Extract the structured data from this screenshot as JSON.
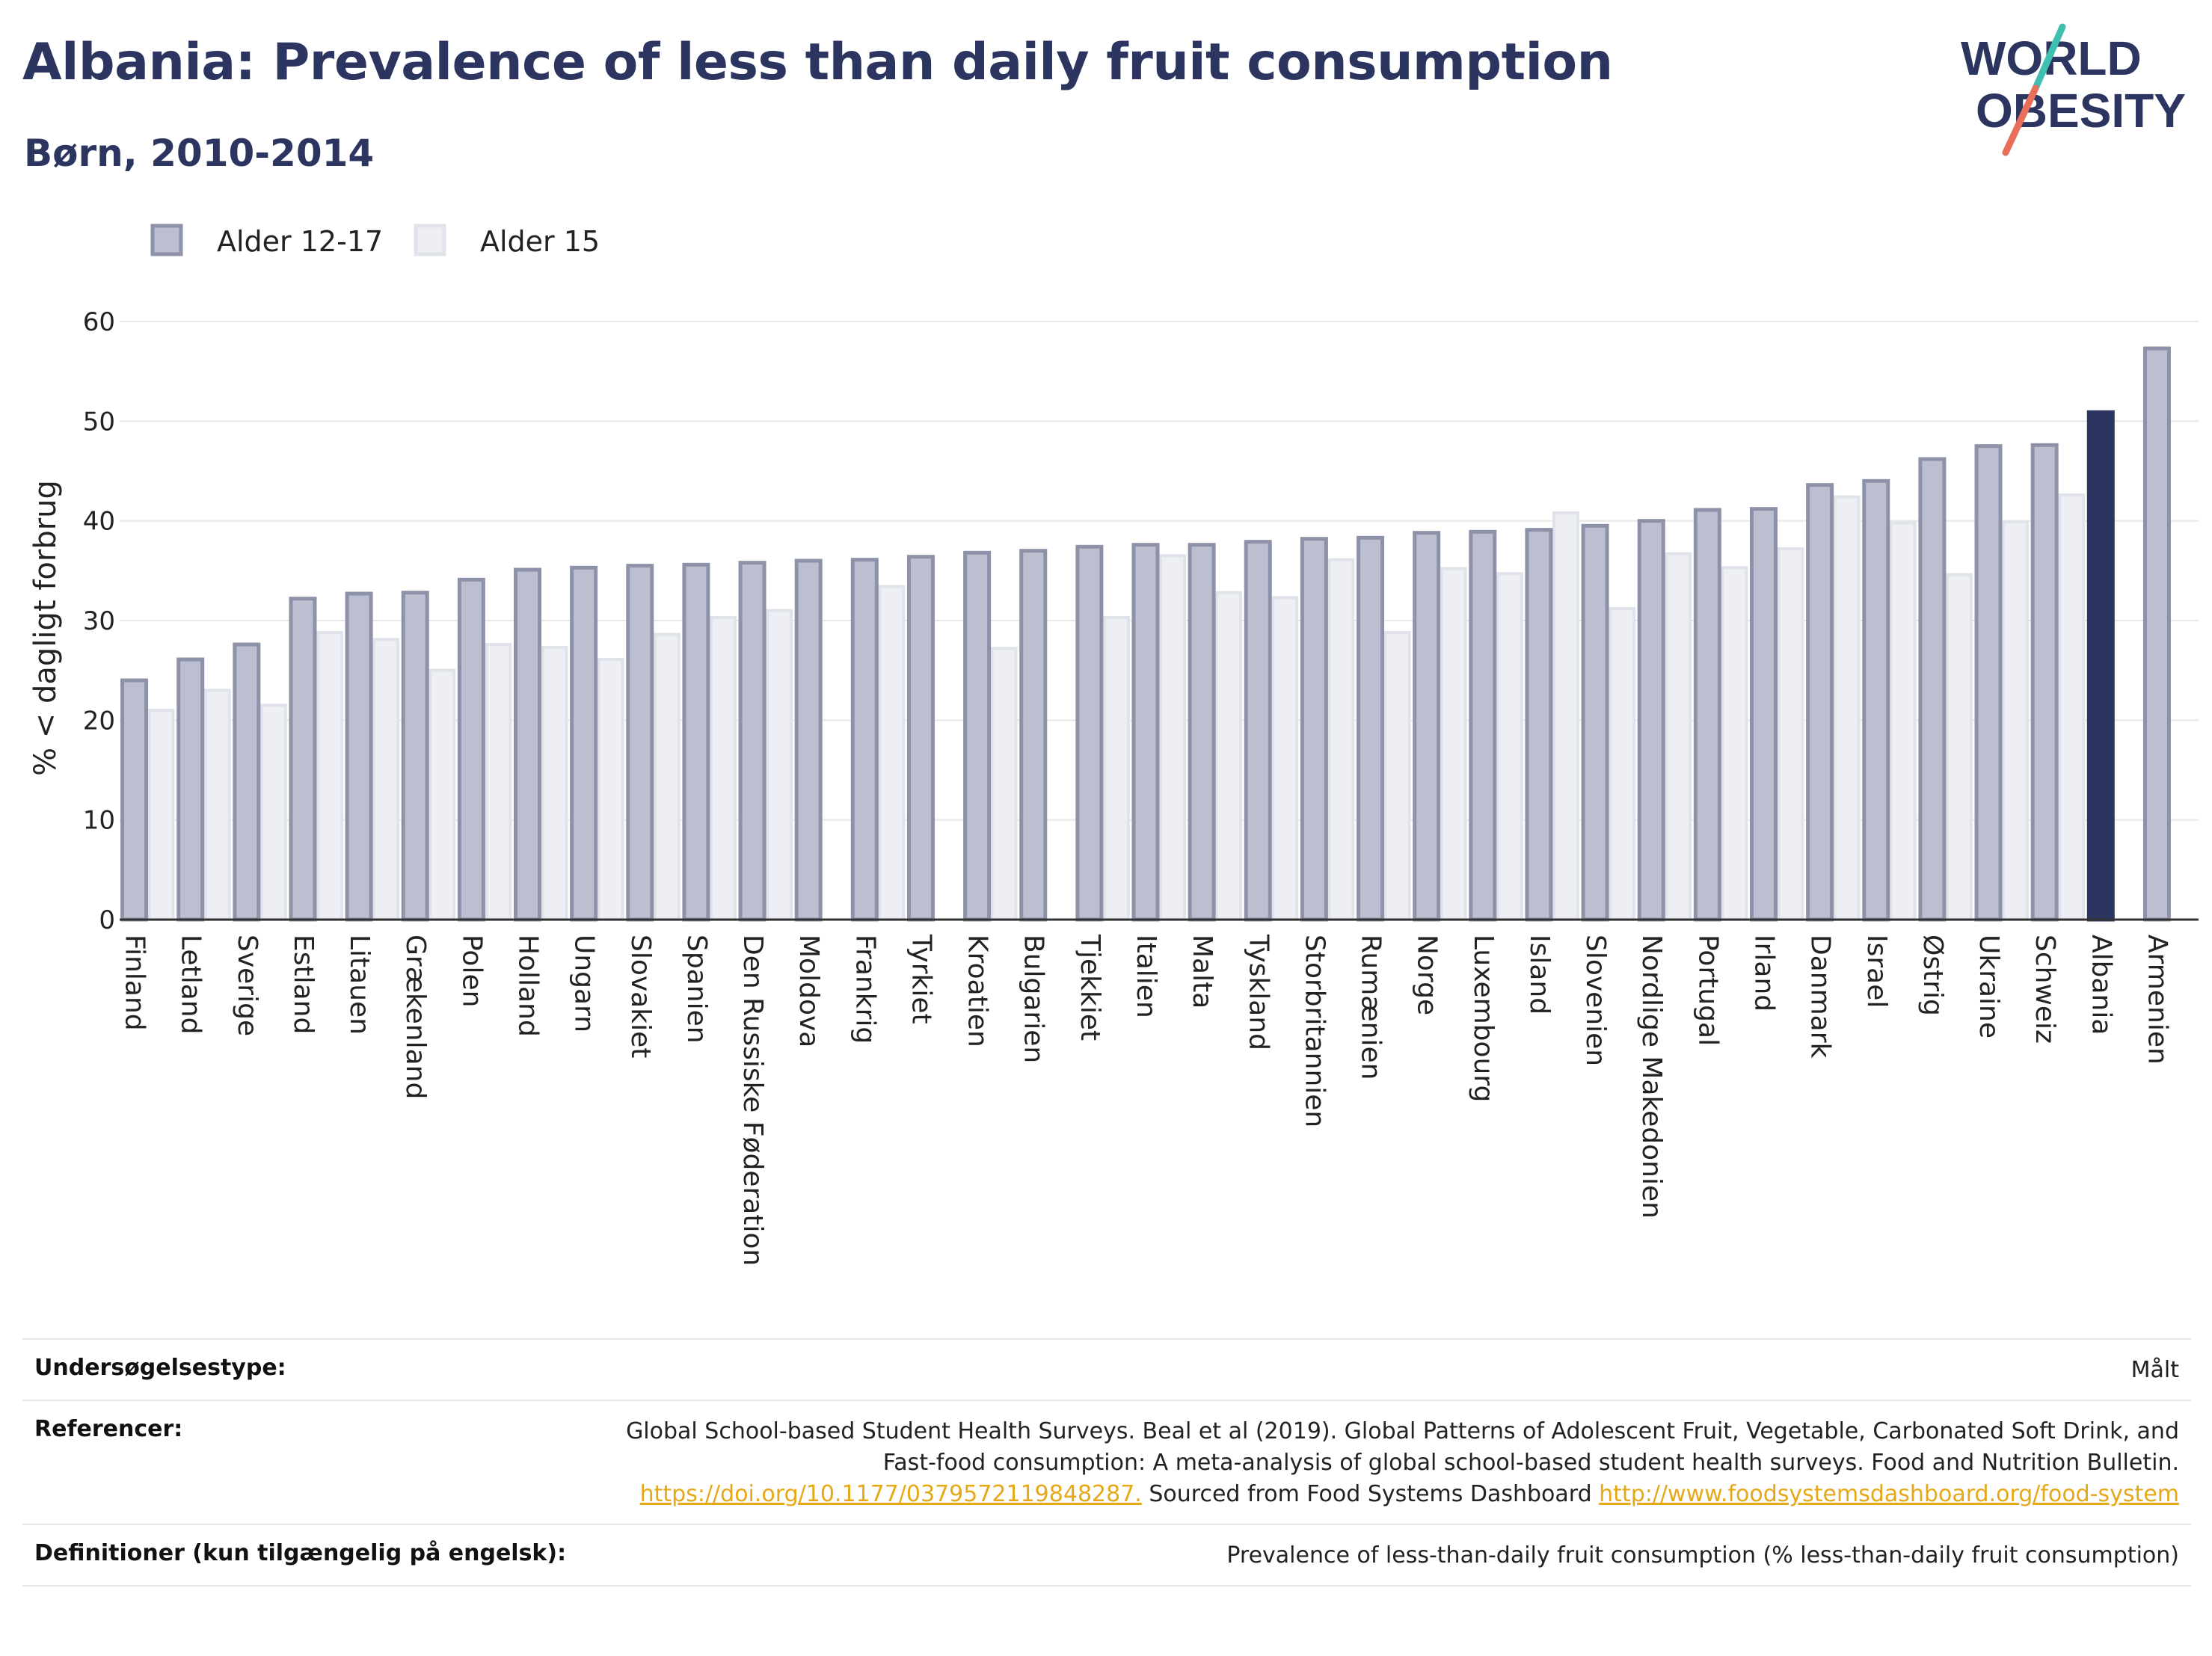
{
  "title": "Albania: Prevalence of less than daily fruit consumption",
  "subtitle": "Børn, 2010-2014",
  "logo": {
    "line1": "WORLD",
    "line2": "OBESITY"
  },
  "colors": {
    "primary": "#2b3560",
    "series1_fill": "#bcbfd0",
    "series1_stroke": "#8e92a9",
    "series2_fill": "#eeeff4",
    "series2_stroke": "#e1e3ea",
    "highlight": "#2b3560",
    "logo_teal": "#3fbfb0",
    "logo_red": "#e8705a",
    "link": "#e6a817"
  },
  "chart_data": {
    "type": "bar",
    "ylabel": "% < dagligt forbrug",
    "ylim": [
      0,
      60
    ],
    "yticks": [
      0,
      10,
      20,
      30,
      40,
      50,
      60
    ],
    "grid": true,
    "legend_position": "top-left",
    "highlight_category": "Albania",
    "categories": [
      "Finland",
      "Letland",
      "Sverige",
      "Estland",
      "Litauen",
      "Grækenland",
      "Polen",
      "Holland",
      "Ungarn",
      "Slovakiet",
      "Spanien",
      "Den Russiske Føderation",
      "Moldova",
      "Frankrig",
      "Tyrkiet",
      "Kroatien",
      "Bulgarien",
      "Tjekkiet",
      "Italien",
      "Malta",
      "Tyskland",
      "Storbritannien",
      "Rumænien",
      "Norge",
      "Luxembourg",
      "Island",
      "Slovenien",
      "Nordlige Makedonien",
      "Portugal",
      "Irland",
      "Danmark",
      "Israel",
      "Østrig",
      "Ukraine",
      "Schweiz",
      "Albania",
      "Armenien"
    ],
    "series": [
      {
        "name": "Alder 12-17",
        "values": [
          24.0,
          26.1,
          27.6,
          32.2,
          32.7,
          32.8,
          34.1,
          35.1,
          35.3,
          35.5,
          35.6,
          35.8,
          36.0,
          36.1,
          36.4,
          36.8,
          37.0,
          37.4,
          37.6,
          37.6,
          37.9,
          38.2,
          38.3,
          38.8,
          38.9,
          39.1,
          39.5,
          40.0,
          41.1,
          41.2,
          43.6,
          44.0,
          46.2,
          47.5,
          47.6,
          50.9,
          57.3
        ]
      },
      {
        "name": "Alder 15",
        "values": [
          21.0,
          23.0,
          21.5,
          28.8,
          28.1,
          25.0,
          27.6,
          27.3,
          26.1,
          28.6,
          30.3,
          31.0,
          null,
          33.4,
          null,
          27.2,
          null,
          30.3,
          36.5,
          32.8,
          32.3,
          36.1,
          28.8,
          35.2,
          34.7,
          40.8,
          31.2,
          36.7,
          35.3,
          37.2,
          42.4,
          39.8,
          34.6,
          39.9,
          42.6,
          null,
          null
        ]
      }
    ]
  },
  "footer": {
    "rows": [
      {
        "label": "Undersøgelsestype:",
        "value": "Målt"
      },
      {
        "label": "Referencer:",
        "value": "Global School-based Student Health Surveys. Beal et al (2019). Global Patterns of Adolescent Fruit, Vegetable, Carbonated Soft Drink, and Fast-food consumption: A meta-analysis of global school-based student health surveys. Food and Nutrition Bulletin.",
        "link1": "https://doi.org/10.1177/0379572119848287.",
        "middle": " Sourced from Food Systems Dashboard ",
        "link2": "http://www.foodsystemsdashboard.org/food-system"
      },
      {
        "label": "Definitioner (kun tilgængelig på engelsk):",
        "value": "Prevalence of less-than-daily fruit consumption (% less-than-daily fruit consumption)"
      }
    ]
  }
}
